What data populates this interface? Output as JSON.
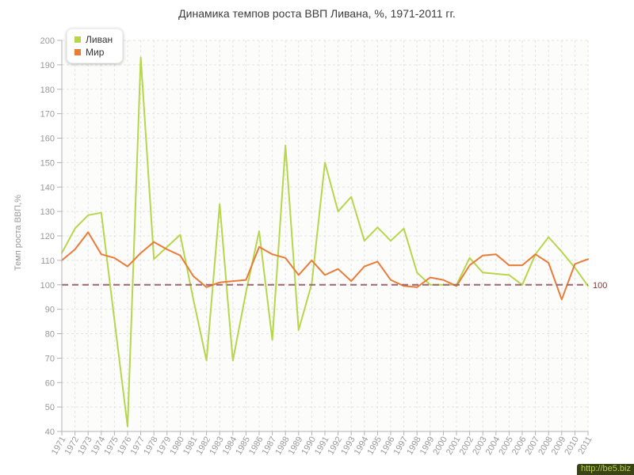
{
  "title": "Динамика темпов роста ВВП Ливана, %, 1971-2011 гг.",
  "legend": {
    "position": "top-left",
    "items": [
      {
        "label": "Ливан",
        "color": "#b7d64b"
      },
      {
        "label": "Мир",
        "color": "#e87c38"
      }
    ]
  },
  "annotation": {
    "label": "100",
    "value": 100,
    "line_color": "#9c6670",
    "label_color": "#8b3030"
  },
  "watermark": {
    "text": "http://be5.biz"
  },
  "chart_data": {
    "type": "line",
    "title": "Динамика темпов роста ВВП Ливана, %, 1971-2011 гг.",
    "xlabel": "",
    "ylabel": "Темп роста ВВП,%",
    "ylim": [
      40,
      200
    ],
    "ytick_step": 10,
    "y_ticks": [
      40,
      50,
      60,
      70,
      80,
      90,
      100,
      110,
      120,
      130,
      140,
      150,
      160,
      170,
      180,
      190,
      200
    ],
    "grid": true,
    "legend_position": "top-left",
    "reference_line": 100,
    "x": [
      1971,
      1972,
      1973,
      1974,
      1975,
      1976,
      1977,
      1978,
      1979,
      1980,
      1981,
      1982,
      1983,
      1984,
      1985,
      1986,
      1987,
      1988,
      1989,
      1990,
      1991,
      1992,
      1993,
      1994,
      1995,
      1996,
      1997,
      1998,
      1999,
      2000,
      2001,
      2002,
      2003,
      2004,
      2005,
      2006,
      2007,
      2008,
      2009,
      2010,
      2011
    ],
    "series": [
      {
        "name": "Ливан",
        "color": "#b7d64b",
        "values": [
          113,
          123,
          128.5,
          129.5,
          85.5,
          42,
          193,
          110.5,
          115.5,
          120.5,
          94,
          69,
          133,
          69,
          97,
          122,
          77.5,
          157,
          81.5,
          100.5,
          150,
          130,
          136,
          118,
          123.5,
          118,
          123,
          105,
          100,
          100,
          100,
          111,
          105,
          104.5,
          104,
          100,
          112.5,
          119.5,
          113.5,
          107,
          99.5
        ]
      },
      {
        "name": "Мир",
        "color": "#e87c38",
        "values": [
          110,
          114.5,
          121.5,
          112.5,
          111,
          107.5,
          113,
          117.5,
          114.5,
          112,
          103.5,
          99,
          101,
          101.5,
          102,
          115.5,
          112.5,
          111,
          104,
          110,
          104,
          106.5,
          101.5,
          107.5,
          109.5,
          102,
          99.5,
          99,
          103,
          102,
          99.5,
          108,
          112,
          112.5,
          108,
          108,
          112.5,
          109,
          94,
          108.5,
          110.5
        ]
      }
    ],
    "colors": {
      "grid": "#e3e3e3",
      "axis": "#b3b3b3",
      "tick_text": "#999999",
      "plot_bg": "#fcfcfb"
    }
  }
}
